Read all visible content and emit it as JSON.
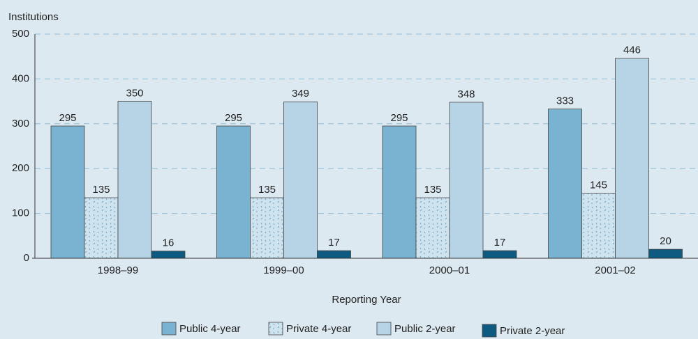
{
  "chart_data": {
    "type": "bar",
    "y_label": "Institutions",
    "x_label": "Reporting Year",
    "categories": [
      "1998–99",
      "1999–00",
      "2000–01",
      "2001–02"
    ],
    "series": [
      {
        "name": "Public 4-year",
        "color": "#7ab2d1",
        "values": [
          295,
          295,
          295,
          333
        ]
      },
      {
        "name": "Private 4-year",
        "color": "#cfe3ee",
        "pattern": "dots",
        "values": [
          135,
          135,
          135,
          145
        ]
      },
      {
        "name": "Public 2-year",
        "color": "#b6d4e6",
        "values": [
          350,
          349,
          348,
          446
        ]
      },
      {
        "name": "Private 2-year",
        "color": "#0e5a80",
        "values": [
          16,
          17,
          17,
          20
        ]
      }
    ],
    "ylim": [
      0,
      500
    ],
    "yticks": [
      0,
      100,
      200,
      300,
      400,
      500
    ],
    "grid": true,
    "legend": "bottom"
  }
}
